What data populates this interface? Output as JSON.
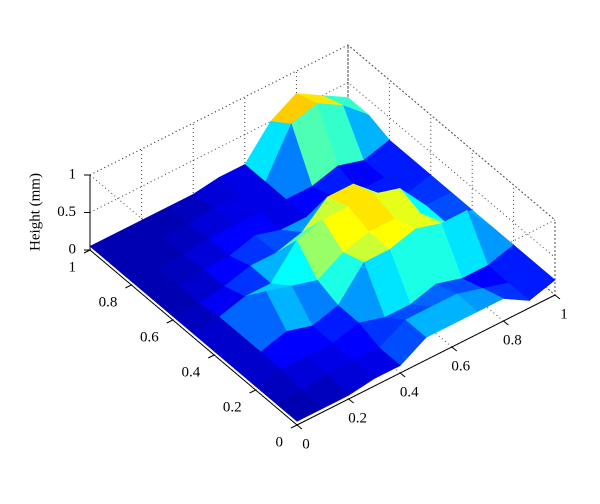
{
  "chart_data": {
    "type": "surface",
    "zlabel": "Height (mm)",
    "x": [
      0,
      0.1,
      0.2,
      0.3,
      0.4,
      0.5,
      0.6,
      0.7,
      0.8,
      0.9,
      1
    ],
    "y": [
      0,
      0.1,
      0.2,
      0.3,
      0.4,
      0.5,
      0.6,
      0.7,
      0.8,
      0.9,
      1
    ],
    "z": [
      [
        0.05,
        0.05,
        0.05,
        0.1,
        0.1,
        0.3,
        0.3,
        0.3,
        0.3,
        0.1,
        0.2
      ],
      [
        0.05,
        0.05,
        0.1,
        0.1,
        0.1,
        0.3,
        0.3,
        0.3,
        0.2,
        0.1,
        0.2
      ],
      [
        0.05,
        0.1,
        0.1,
        0.1,
        0.2,
        0.1,
        0.1,
        0.2,
        0.1,
        0.1,
        0.2
      ],
      [
        0.05,
        0.1,
        0.2,
        0.1,
        0.2,
        0.6,
        0.6,
        0.7,
        0.6,
        0.6,
        0.2
      ],
      [
        0.05,
        0.1,
        0.5,
        0.4,
        0.3,
        0.5,
        0.6,
        0.6,
        0.5,
        0.2,
        0.2
      ],
      [
        0.05,
        0.1,
        0.2,
        0.2,
        0.6,
        0.7,
        0.7,
        0.7,
        0.6,
        0.2,
        0.2
      ],
      [
        0.05,
        0.05,
        0.1,
        0.2,
        0.2,
        0.3,
        0.6,
        0.6,
        0.3,
        0.1,
        0.2
      ],
      [
        0.05,
        0.05,
        0.1,
        0.1,
        0.2,
        0.1,
        0.1,
        0.2,
        0.1,
        0.1,
        0.2
      ],
      [
        0.05,
        0.05,
        0.05,
        0.1,
        0.1,
        0.1,
        0.1,
        0.1,
        0.2,
        0.1,
        0.2
      ],
      [
        0.05,
        0.05,
        0.05,
        0.05,
        0.1,
        0.1,
        0.1,
        0.7,
        0.8,
        0.6,
        0.3
      ],
      [
        0.05,
        0.05,
        0.05,
        0.05,
        0.05,
        0.1,
        0.1,
        0.5,
        0.7,
        0.5,
        0.3
      ]
    ],
    "xlim": [
      0,
      1
    ],
    "xticks": [
      0,
      0.2,
      0.4,
      0.6,
      0.8,
      1
    ],
    "ylim": [
      0,
      1
    ],
    "yticks": [
      0,
      0.2,
      0.4,
      0.6,
      0.8,
      1
    ],
    "zlim": [
      0,
      1
    ],
    "zticks": [
      0,
      0.5,
      1
    ],
    "colormap": "jet",
    "grid": true
  }
}
